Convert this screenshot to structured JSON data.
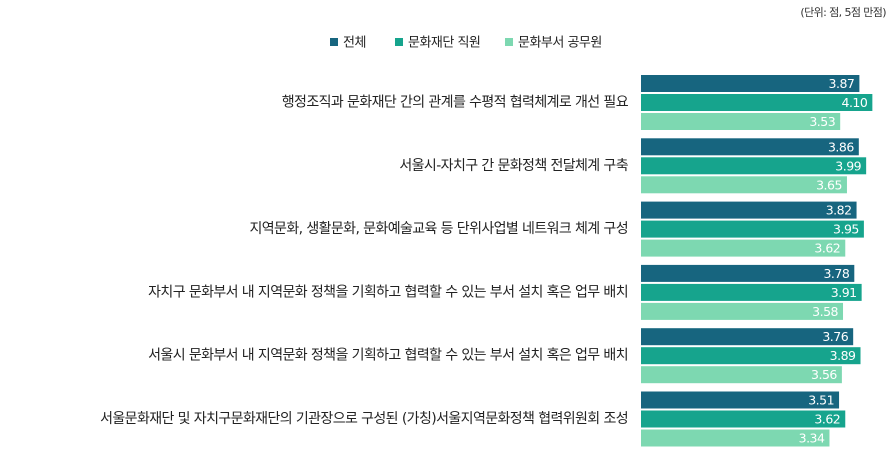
{
  "chart_data": {
    "type": "hbar",
    "unit_note": "(단위: 점, 5점 만점)",
    "categories": [
      "행정조직과 문화재단 간의 관계를 수평적 협력체계로 개선 필요",
      "서울시-자치구 간 문화정책 전달체계 구축",
      "지역문화, 생활문화, 문화예술교육 등 단위사업별 네트워크 체계 구성",
      "자치구 문화부서 내 지역문화 정책을 기획하고 협력할 수 있는 부서 설치 혹은 업무 배치",
      "서울시 문화부서 내 지역문화 정책을 기획하고 협력할 수 있는 부서 설치 혹은 업무 배치",
      "서울문화재단 및 자치구문화재단의 기관장으로 구성된 (가칭)서울지역문화정책 협력위원회 조성"
    ],
    "series": [
      {
        "name": "전체",
        "color": "#17657f",
        "values": [
          3.87,
          3.86,
          3.82,
          3.78,
          3.76,
          3.51
        ],
        "value_labels": [
          "3.87",
          "3.86",
          "3.82",
          "3.78",
          "3.76",
          "3.51"
        ]
      },
      {
        "name": "문화재단 직원",
        "color": "#16a48d",
        "values": [
          4.1,
          3.99,
          3.95,
          3.91,
          3.89,
          3.62
        ],
        "value_labels": [
          "4.10",
          "3.99",
          "3.95",
          "3.91",
          "3.89",
          "3.62"
        ]
      },
      {
        "name": "문화부서 공무원",
        "color": "#7dd8b1",
        "values": [
          3.53,
          3.65,
          3.62,
          3.58,
          3.56,
          3.34
        ],
        "value_labels": [
          "3.53",
          "3.65",
          "3.62",
          "3.58",
          "3.56",
          "3.34"
        ]
      }
    ],
    "xlim": [
      0,
      4.2
    ]
  }
}
